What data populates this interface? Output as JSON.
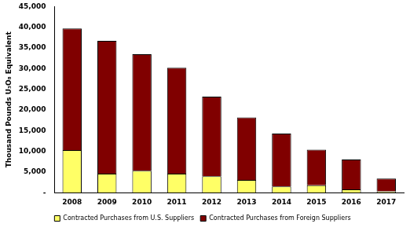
{
  "chart_data": {
    "type": "bar",
    "stacked": true,
    "grid": false,
    "legend": "bottom",
    "y_label": "Thousand Pounds U₃O₈ Equivalent",
    "categories": [
      "2008",
      "2009",
      "2010",
      "2011",
      "2012",
      "2013",
      "2014",
      "2015",
      "2016",
      "2017"
    ],
    "series": [
      {
        "name": "Contracted Purchases from U.S. Suppliers",
        "color": "#ffff66",
        "values": [
          10300,
          4600,
          5300,
          4600,
          4000,
          3100,
          1500,
          1800,
          800,
          300
        ]
      },
      {
        "name": "Contracted Purchases from Foreign Suppliers",
        "color": "#800000",
        "values": [
          29400,
          32100,
          28200,
          25600,
          19200,
          15100,
          12800,
          8600,
          7200,
          3100
        ]
      }
    ],
    "ylim": [
      0,
      45000
    ],
    "yticks": [
      {
        "value": 0,
        "label": "-"
      },
      {
        "value": 5000,
        "label": "5,000"
      },
      {
        "value": 10000,
        "label": "10,000"
      },
      {
        "value": 15000,
        "label": "15,000"
      },
      {
        "value": 20000,
        "label": "20,000"
      },
      {
        "value": 25000,
        "label": "25,000"
      },
      {
        "value": 30000,
        "label": "30,000"
      },
      {
        "value": 35000,
        "label": "35,000"
      },
      {
        "value": 40000,
        "label": "40,000"
      },
      {
        "value": 45000,
        "label": "45,000"
      }
    ]
  }
}
